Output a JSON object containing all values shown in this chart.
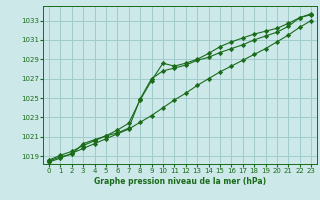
{
  "title": "Graphe pression niveau de la mer (hPa)",
  "bg_color": "#cce8e8",
  "grid_color": "#a0cccc",
  "line_color": "#1a6b1a",
  "marker_color": "#1a6b1a",
  "xlim": [
    -0.5,
    23.5
  ],
  "ylim": [
    1018.2,
    1034.5
  ],
  "yticks": [
    1019,
    1021,
    1023,
    1025,
    1027,
    1029,
    1031,
    1033
  ],
  "xticks": [
    0,
    1,
    2,
    3,
    4,
    5,
    6,
    7,
    8,
    9,
    10,
    11,
    12,
    13,
    14,
    15,
    16,
    17,
    18,
    19,
    20,
    21,
    22,
    23
  ],
  "line1_x": [
    0,
    1,
    2,
    3,
    4,
    5,
    6,
    7,
    8,
    9,
    10,
    11,
    12,
    13,
    14,
    15,
    16,
    17,
    18,
    19,
    20,
    21,
    22,
    23
  ],
  "line1_y": [
    1018.6,
    1019.1,
    1019.5,
    1020.1,
    1020.6,
    1021.1,
    1021.4,
    1021.9,
    1024.9,
    1027.0,
    1027.8,
    1028.1,
    1028.4,
    1028.9,
    1029.2,
    1029.7,
    1030.1,
    1030.5,
    1031.0,
    1031.4,
    1031.8,
    1032.4,
    1033.3,
    1033.6
  ],
  "line2_x": [
    0,
    1,
    2,
    3,
    4,
    5,
    6,
    7,
    8,
    9,
    10,
    11,
    12,
    13,
    14,
    15,
    16,
    17,
    18,
    19,
    20,
    21,
    22,
    23
  ],
  "line2_y": [
    1018.4,
    1018.8,
    1019.3,
    1019.8,
    1020.3,
    1020.8,
    1021.3,
    1021.8,
    1022.5,
    1023.2,
    1024.0,
    1024.8,
    1025.5,
    1026.3,
    1027.0,
    1027.7,
    1028.3,
    1028.9,
    1029.5,
    1030.1,
    1030.8,
    1031.5,
    1032.3,
    1033.0
  ],
  "line3_x": [
    0,
    1,
    2,
    3,
    4,
    5,
    6,
    7,
    8,
    9,
    10,
    11,
    12,
    13,
    14,
    15,
    16,
    17,
    18,
    19,
    20,
    21,
    22,
    23
  ],
  "line3_y": [
    1018.5,
    1018.95,
    1019.2,
    1020.3,
    1020.7,
    1021.1,
    1021.7,
    1022.4,
    1024.8,
    1026.8,
    1028.6,
    1028.3,
    1028.6,
    1029.0,
    1029.6,
    1030.3,
    1030.8,
    1031.2,
    1031.6,
    1031.9,
    1032.2,
    1032.7,
    1033.3,
    1033.7
  ],
  "tick_fontsize": 5.0,
  "label_fontsize": 5.5
}
